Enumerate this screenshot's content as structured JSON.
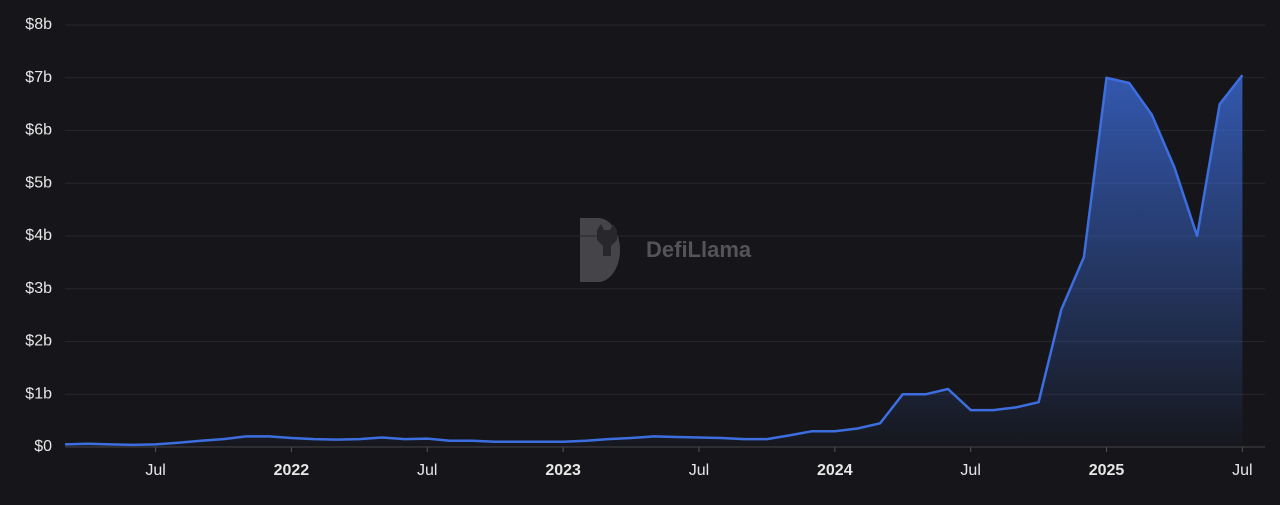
{
  "chart_data": {
    "type": "area",
    "watermark": "DefiLlama",
    "color": "#3d6ee0",
    "grid": true,
    "x": [
      "2021-03",
      "2021-04",
      "2021-05",
      "2021-06",
      "2021-07",
      "2021-08",
      "2021-09",
      "2021-10",
      "2021-11",
      "2021-12",
      "2022-01",
      "2022-02",
      "2022-03",
      "2022-04",
      "2022-05",
      "2022-06",
      "2022-07",
      "2022-08",
      "2022-09",
      "2022-10",
      "2022-11",
      "2022-12",
      "2023-01",
      "2023-02",
      "2023-03",
      "2023-04",
      "2023-05",
      "2023-06",
      "2023-07",
      "2023-08",
      "2023-09",
      "2023-10",
      "2023-11",
      "2023-12",
      "2024-01",
      "2024-02",
      "2024-03",
      "2024-04",
      "2024-05",
      "2024-06",
      "2024-07",
      "2024-08",
      "2024-09",
      "2024-10",
      "2024-11",
      "2024-12",
      "2025-01",
      "2025-02",
      "2025-03",
      "2025-04",
      "2025-05",
      "2025-06",
      "2025-07"
    ],
    "values": [
      0.05,
      0.06,
      0.05,
      0.04,
      0.05,
      0.08,
      0.12,
      0.15,
      0.2,
      0.2,
      0.17,
      0.15,
      0.14,
      0.15,
      0.18,
      0.15,
      0.16,
      0.12,
      0.12,
      0.1,
      0.1,
      0.1,
      0.1,
      0.12,
      0.15,
      0.17,
      0.2,
      0.19,
      0.18,
      0.17,
      0.15,
      0.15,
      0.22,
      0.3,
      0.3,
      0.35,
      0.45,
      1.0,
      1.0,
      1.1,
      0.7,
      0.7,
      0.75,
      0.85,
      2.6,
      3.6,
      7.0,
      6.9,
      6.3,
      5.3,
      4.0,
      6.5,
      7.05
    ],
    "xlim": [
      "2021-03",
      "2025-08"
    ],
    "xticks": [
      {
        "value": "2021-07",
        "label": "Jul"
      },
      {
        "value": "2022-01",
        "label": "2022"
      },
      {
        "value": "2022-07",
        "label": "Jul"
      },
      {
        "value": "2023-01",
        "label": "2023"
      },
      {
        "value": "2023-07",
        "label": "Jul"
      },
      {
        "value": "2024-01",
        "label": "2024"
      },
      {
        "value": "2024-07",
        "label": "Jul"
      },
      {
        "value": "2025-01",
        "label": "2025"
      },
      {
        "value": "2025-07",
        "label": "Jul"
      }
    ],
    "ylim": [
      0,
      8
    ],
    "yticks": [
      {
        "value": 0,
        "label": "$0"
      },
      {
        "value": 1,
        "label": "$1b"
      },
      {
        "value": 2,
        "label": "$2b"
      },
      {
        "value": 3,
        "label": "$3b"
      },
      {
        "value": 4,
        "label": "$4b"
      },
      {
        "value": 5,
        "label": "$5b"
      },
      {
        "value": 6,
        "label": "$6b"
      },
      {
        "value": 7,
        "label": "$7b"
      },
      {
        "value": 8,
        "label": "$8b"
      }
    ]
  }
}
